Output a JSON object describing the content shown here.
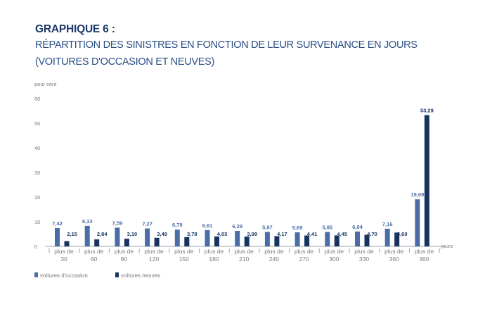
{
  "header": {
    "title": "GRAPHIQUE 6 :",
    "subtitle_line1": "RÉPARTITION DES SINISTRES EN FONCTION DE LEUR SURVENANCE EN JOURS",
    "subtitle_line2": "(VOITURES D'OCCASION ET NEUVES)"
  },
  "colors": {
    "occasion": "#4a6da7",
    "neuves": "#16345f",
    "axis": "#9aa3b0",
    "label_occasion": "#4a6da7",
    "label_neuves": "#16345f"
  },
  "chart_data": {
    "type": "bar",
    "ylabel": "pour cent",
    "xunit": "jours",
    "ylim": [
      0,
      60
    ],
    "yticks": [
      0,
      10,
      20,
      30,
      40,
      50,
      60
    ],
    "grid": false,
    "legend_position": "bottom-left",
    "categories": [
      [
        "plus de",
        "30"
      ],
      [
        "plus de",
        "60"
      ],
      [
        "plus de",
        "90"
      ],
      [
        "plus de",
        "120"
      ],
      [
        "plus de",
        "150"
      ],
      [
        "plus de",
        "180"
      ],
      [
        "plus de",
        "210"
      ],
      [
        "plus de",
        "240"
      ],
      [
        "plus de",
        "270"
      ],
      [
        "plus de",
        "300"
      ],
      [
        "plus de",
        "330"
      ],
      [
        "plus de",
        "360"
      ],
      [
        "plus de",
        "360"
      ]
    ],
    "series": [
      {
        "name": "voitures d'occasion",
        "values": [
          7.42,
          8.33,
          7.59,
          7.27,
          6.79,
          6.61,
          6.29,
          5.87,
          5.69,
          5.85,
          6.04,
          7.16,
          19.09
        ],
        "labels": [
          "7,42",
          "8,33",
          "7,59",
          "7,27",
          "6,79",
          "6,61",
          "6,29",
          "5,87",
          "5,69",
          "5,85",
          "6,04",
          "7,16",
          "19,09"
        ]
      },
      {
        "name": "voitures neuves",
        "values": [
          2.15,
          2.84,
          3.1,
          3.49,
          3.78,
          4.03,
          3.99,
          4.17,
          4.41,
          4.45,
          4.7,
          5.6,
          53.29
        ],
        "labels": [
          "2,15",
          "2,84",
          "3,10",
          "3,49",
          "3,78",
          "4,03",
          "3,99",
          "4,17",
          "4,41",
          "4,45",
          "4,70",
          "5,60",
          "53,29"
        ]
      }
    ]
  }
}
